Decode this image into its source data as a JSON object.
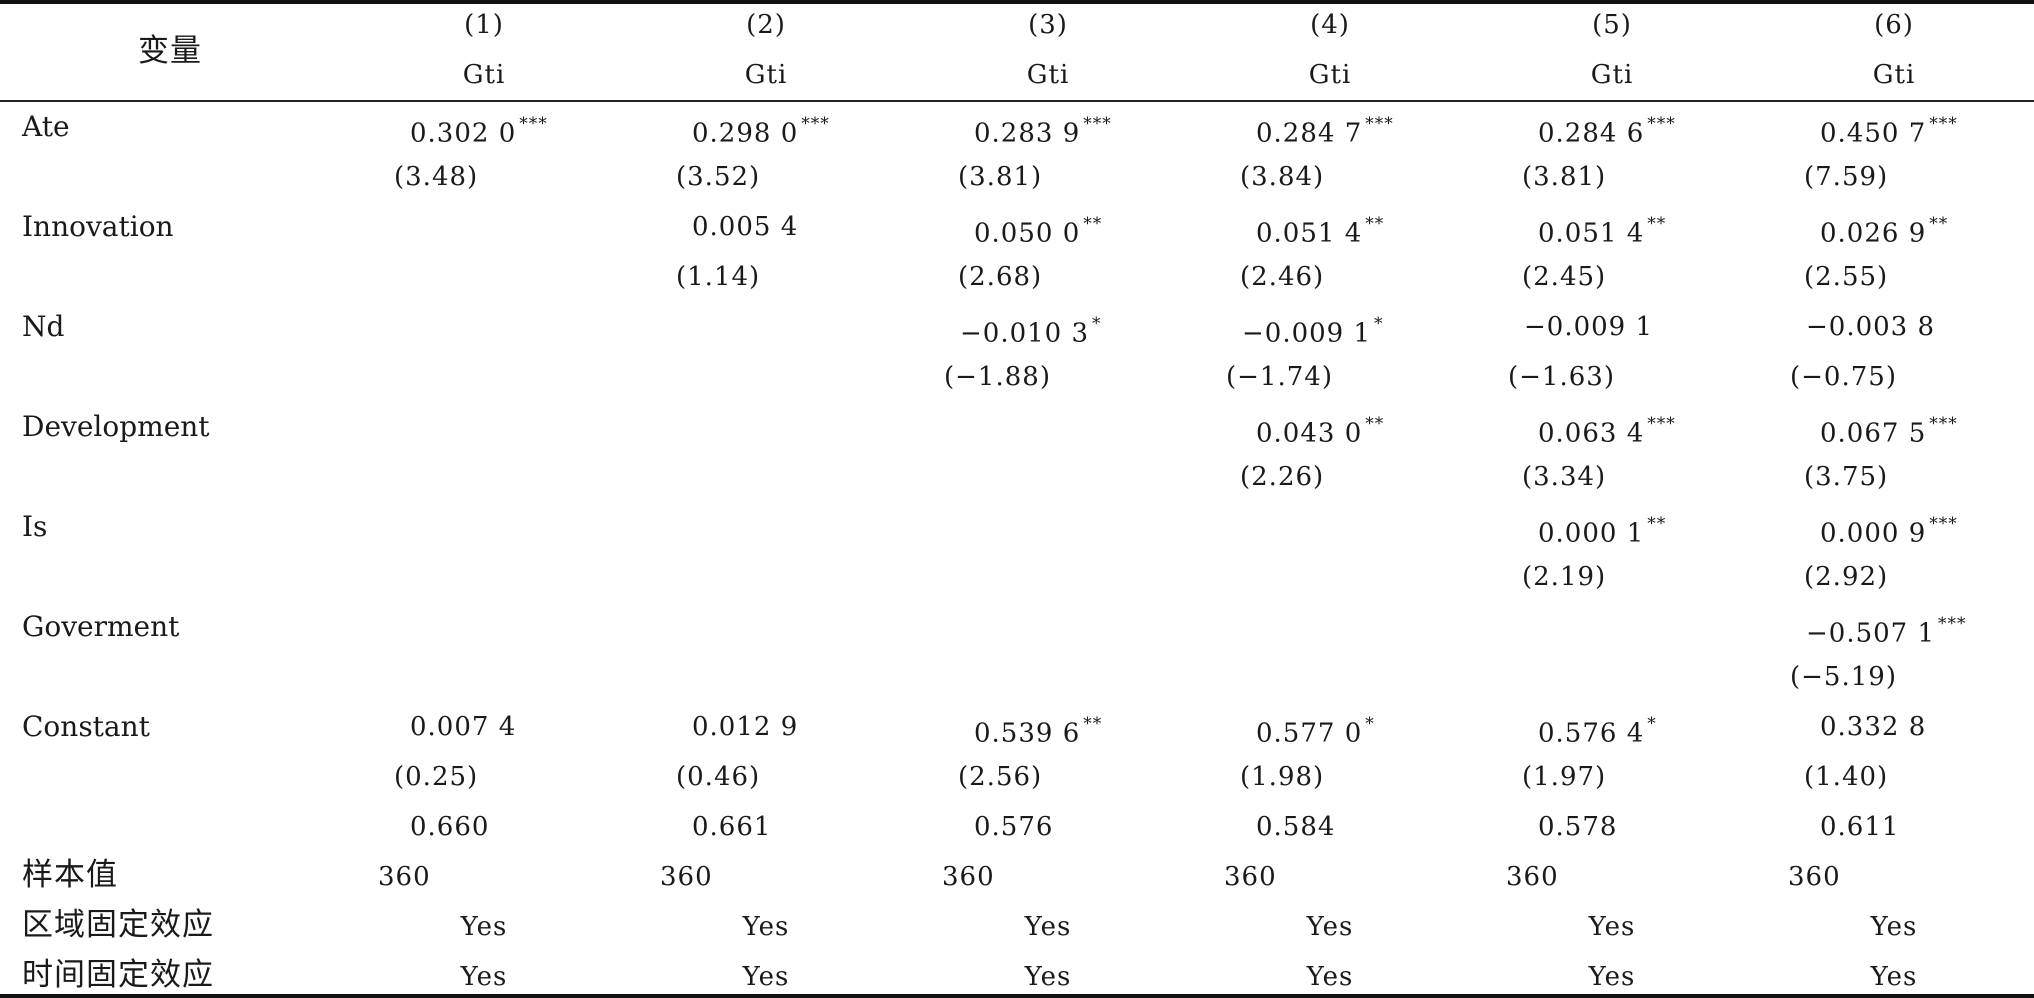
{
  "header": {
    "variable_label": "变量",
    "columns": [
      {
        "num": "(1)",
        "dep": "Gti"
      },
      {
        "num": "(2)",
        "dep": "Gti"
      },
      {
        "num": "(3)",
        "dep": "Gti"
      },
      {
        "num": "(4)",
        "dep": "Gti"
      },
      {
        "num": "(5)",
        "dep": "Gti"
      },
      {
        "num": "(6)",
        "dep": "Gti"
      }
    ]
  },
  "rows": [
    {
      "label": "Ate",
      "coef": [
        [
          "0.302 0",
          "***"
        ],
        [
          "0.298 0",
          "***"
        ],
        [
          "0.283 9",
          "***"
        ],
        [
          "0.284 7",
          "***"
        ],
        [
          "0.284 6",
          "***"
        ],
        [
          "0.450 7",
          "***"
        ]
      ],
      "t": [
        "(3.48)",
        "(3.52)",
        "(3.81)",
        "(3.84)",
        "(3.81)",
        "(7.59)"
      ]
    },
    {
      "label": "Innovation",
      "coef": [
        null,
        [
          "0.005 4",
          ""
        ],
        [
          "0.050 0",
          "**"
        ],
        [
          "0.051 4",
          "**"
        ],
        [
          "0.051 4",
          "**"
        ],
        [
          "0.026 9",
          "**"
        ]
      ],
      "t": [
        null,
        "(1.14)",
        "(2.68)",
        "(2.46)",
        "(2.45)",
        "(2.55)"
      ]
    },
    {
      "label": "Nd",
      "coef": [
        null,
        null,
        [
          "−0.010 3",
          "*"
        ],
        [
          "−0.009 1",
          "*"
        ],
        [
          "−0.009 1",
          ""
        ],
        [
          "−0.003 8",
          ""
        ]
      ],
      "t": [
        null,
        null,
        "(−1.88)",
        "(−1.74)",
        "(−1.63)",
        "(−0.75)"
      ]
    },
    {
      "label": "Development",
      "coef": [
        null,
        null,
        null,
        [
          "0.043 0",
          "**"
        ],
        [
          "0.063 4",
          "***"
        ],
        [
          "0.067 5",
          "***"
        ]
      ],
      "t": [
        null,
        null,
        null,
        "(2.26)",
        "(3.34)",
        "(3.75)"
      ]
    },
    {
      "label": "Is",
      "coef": [
        null,
        null,
        null,
        null,
        [
          "0.000 1",
          "**"
        ],
        [
          "0.000 9",
          "***"
        ]
      ],
      "t": [
        null,
        null,
        null,
        null,
        "(2.19)",
        "(2.92)"
      ]
    },
    {
      "label": "Goverment",
      "coef": [
        null,
        null,
        null,
        null,
        null,
        [
          "−0.507 1",
          "***"
        ]
      ],
      "t": [
        null,
        null,
        null,
        null,
        null,
        "(−5.19)"
      ]
    },
    {
      "label": "Constant",
      "coef": [
        [
          "0.007 4",
          ""
        ],
        [
          "0.012 9",
          ""
        ],
        [
          "0.539 6",
          "**"
        ],
        [
          "0.577 0",
          "*"
        ],
        [
          "0.576 4",
          "*"
        ],
        [
          "0.332 8",
          ""
        ]
      ],
      "t": [
        "(0.25)",
        "(0.46)",
        "(2.56)",
        "(1.98)",
        "(1.97)",
        "(1.40)"
      ]
    }
  ],
  "r2_values": [
    "0.660",
    "0.661",
    "0.576",
    "0.584",
    "0.578",
    "0.611"
  ],
  "sample": {
    "label": "样本值",
    "values": [
      "360",
      "360",
      "360",
      "360",
      "360",
      "360"
    ]
  },
  "region_fe": {
    "label": "区域固定效应",
    "values": [
      "Yes",
      "Yes",
      "Yes",
      "Yes",
      "Yes",
      "Yes"
    ]
  },
  "time_fe": {
    "label": "时间固定效应",
    "values": [
      "Yes",
      "Yes",
      "Yes",
      "Yes",
      "Yes",
      "Yes"
    ]
  }
}
